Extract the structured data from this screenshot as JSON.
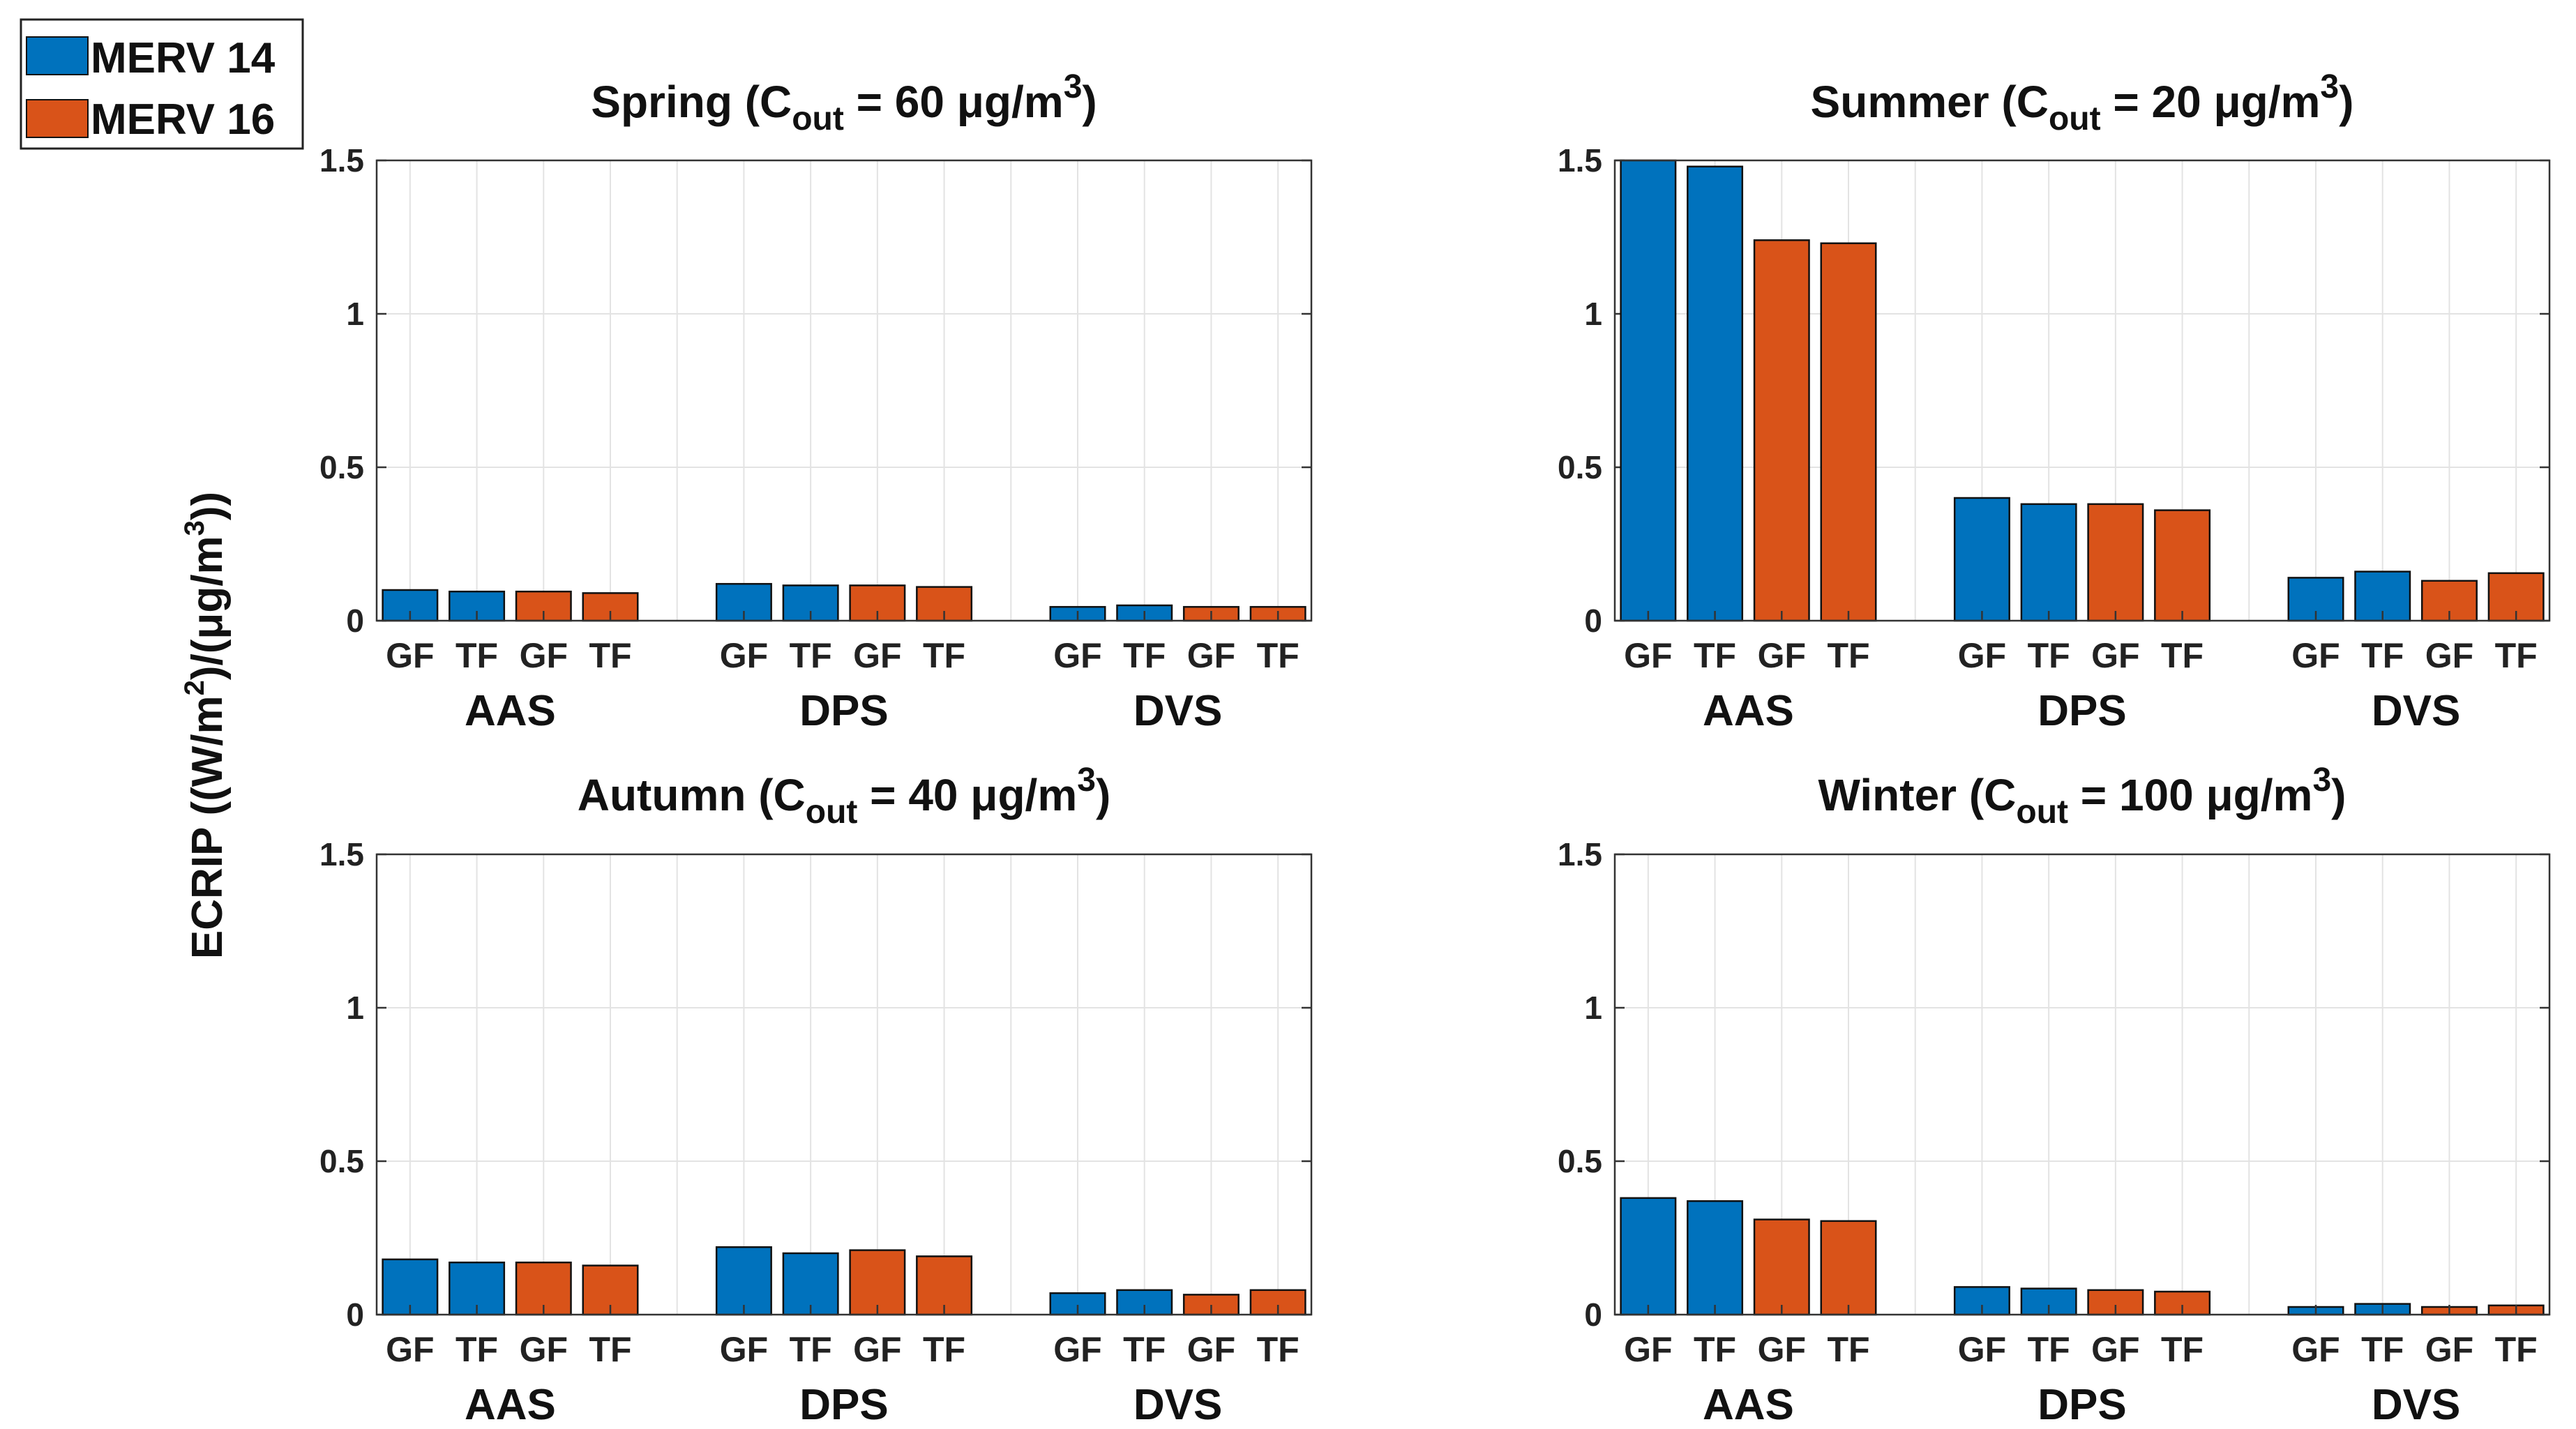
{
  "ylabel": "ECRIP ((W/m²)/(μg/m³))",
  "legend": [
    {
      "label": "MERV 14",
      "color": "#0072BD"
    },
    {
      "label": "MERV 16",
      "color": "#D95319"
    }
  ],
  "chart_data": [
    {
      "type": "bar",
      "title": "Spring (C",
      "title_sub": "out",
      "title_rest": " = 60 μg/m",
      "title_sup": "3",
      "title_end": ")",
      "groups": [
        "AAS",
        "DPS",
        "DVS"
      ],
      "categories": [
        "GF",
        "TF",
        "GF",
        "TF"
      ],
      "series_per_bar": [
        "MERV 14",
        "MERV 14",
        "MERV 16",
        "MERV 16"
      ],
      "values": [
        [
          0.1,
          0.095,
          0.095,
          0.09
        ],
        [
          0.12,
          0.115,
          0.115,
          0.11
        ],
        [
          0.045,
          0.05,
          0.045,
          0.045
        ]
      ],
      "ylim": [
        0,
        1.5
      ],
      "yticks": [
        0,
        0.5,
        1,
        1.5
      ],
      "ytick_labels": [
        "0",
        "0.5",
        "1",
        "1.5"
      ],
      "grid": true
    },
    {
      "type": "bar",
      "title": "Summer (C",
      "title_sub": "out",
      "title_rest": " = 20 μg/m",
      "title_sup": "3",
      "title_end": ")",
      "groups": [
        "AAS",
        "DPS",
        "DVS"
      ],
      "categories": [
        "GF",
        "TF",
        "GF",
        "TF"
      ],
      "series_per_bar": [
        "MERV 14",
        "MERV 14",
        "MERV 16",
        "MERV 16"
      ],
      "values": [
        [
          1.5,
          1.48,
          1.24,
          1.23
        ],
        [
          0.4,
          0.38,
          0.38,
          0.36
        ],
        [
          0.14,
          0.16,
          0.13,
          0.155
        ]
      ],
      "ylim": [
        0,
        1.5
      ],
      "yticks": [
        0,
        0.5,
        1,
        1.5
      ],
      "ytick_labels": [
        "0",
        "0.5",
        "1",
        "1.5"
      ],
      "grid": true
    },
    {
      "type": "bar",
      "title": "Autumn (C",
      "title_sub": "out",
      "title_rest": " = 40 μg/m",
      "title_sup": "3",
      "title_end": ")",
      "groups": [
        "AAS",
        "DPS",
        "DVS"
      ],
      "categories": [
        "GF",
        "TF",
        "GF",
        "TF"
      ],
      "series_per_bar": [
        "MERV 14",
        "MERV 14",
        "MERV 16",
        "MERV 16"
      ],
      "values": [
        [
          0.18,
          0.17,
          0.17,
          0.16
        ],
        [
          0.22,
          0.2,
          0.21,
          0.19
        ],
        [
          0.07,
          0.08,
          0.065,
          0.08
        ]
      ],
      "ylim": [
        0,
        1.5
      ],
      "yticks": [
        0,
        0.5,
        1,
        1.5
      ],
      "ytick_labels": [
        "0",
        "0.5",
        "1",
        "1.5"
      ],
      "grid": true
    },
    {
      "type": "bar",
      "title": "Winter (C",
      "title_sub": "out",
      "title_rest": " = 100 μg/m",
      "title_sup": "3",
      "title_end": ")",
      "groups": [
        "AAS",
        "DPS",
        "DVS"
      ],
      "categories": [
        "GF",
        "TF",
        "GF",
        "TF"
      ],
      "series_per_bar": [
        "MERV 14",
        "MERV 14",
        "MERV 16",
        "MERV 16"
      ],
      "values": [
        [
          0.38,
          0.37,
          0.31,
          0.305
        ],
        [
          0.09,
          0.085,
          0.08,
          0.075
        ],
        [
          0.025,
          0.035,
          0.025,
          0.03
        ]
      ],
      "ylim": [
        0,
        1.5
      ],
      "yticks": [
        0,
        0.5,
        1,
        1.5
      ],
      "ytick_labels": [
        "0",
        "0.5",
        "1",
        "1.5"
      ],
      "grid": true
    }
  ]
}
